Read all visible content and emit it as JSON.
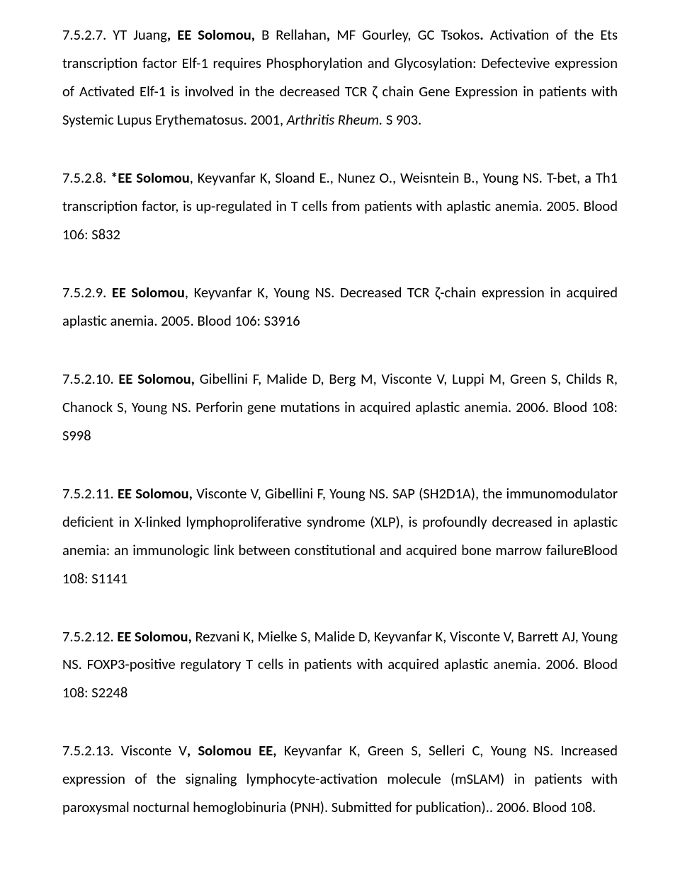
{
  "entries": [
    {
      "num": "7.5.2.7.",
      "authorsPre": "  YT Juang",
      "authorsBold": ", EE Solomou, ",
      "authorsPost": "B Rellahan",
      "authorsBold2": ", ",
      "authorsPost2": "MF Gourley, GC Tsokos",
      "authorsBold3": ".",
      "title": "  Activation of the Ets transcription factor Elf-1 requires Phosphorylation and Glycosylation: Defectevive expression of Activated Elf-1 is involved in the decreased TCR ζ chain Gene Expression in patients with Systemic Lupus Erythematosus. 2001, ",
      "journal": "Arthritis Rheum.",
      "tail": " S 903."
    },
    {
      "num": "7.5.2.8.",
      "authorsBold": "  *EE Solomou",
      "authorsPost": ", Keyvanfar K, Sloand E., Nunez O., Weisntein B., Young NS.  T-bet, a Th1 transcription factor, is up-regulated in T cells from patients with aplastic anemia. 2005. Blood 106: S832"
    },
    {
      "num": "7.5.2.9.",
      "authorsBold": "  EE Solomou",
      "authorsPost": ", Keyvanfar K, Young NS. Decreased TCR ζ-chain expression in acquired aplastic anemia. 2005. Blood 106: S3916"
    },
    {
      "num": "7.5.2.10.",
      "authorsBold": "  EE Solomou,",
      "authorsPost": " Gibellini F, Malide D, Berg M, Visconte V, Luppi M, Green S, Childs R, Chanock S, Young NS.  Perforin gene mutations in acquired aplastic anemia. 2006.  Blood 108: S998"
    },
    {
      "num": "7.5.2.11.",
      "authorsBold": "  EE Solomou,",
      "authorsPost": " Visconte V, Gibellini F, Young NS. SAP (SH2D1A), the immunomodulator deficient in X-linked lymphoproliferative syndrome (XLP), is profoundly decreased in aplastic anemia: an immunologic link between constitutional and acquired bone marrow failureBlood 108: S1141"
    },
    {
      "num": "7.5.2.12.",
      "authorsBold": "  EE Solomou,",
      "authorsPost": " Rezvani K, Mielke S, Malide D, Keyvanfar K, Visconte V, Barrett AJ, Young NS.  FOXP3-positive regulatory T cells in patients with acquired aplastic anemia.  2006. Blood 108: S2248"
    },
    {
      "num": "7.5.2.13.",
      "authorsPre": "  Visconte V",
      "authorsBold": ", Solomou EE, ",
      "authorsPost": "Keyvanfar K, Green S, Selleri C, Young NS. Increased expression of the signaling lymphocyte-activation molecule (mSLAM) in patients with paroxysmal nocturnal hemoglobinuria (PNH). Submitted for publication).. 2006. Blood 108."
    }
  ]
}
